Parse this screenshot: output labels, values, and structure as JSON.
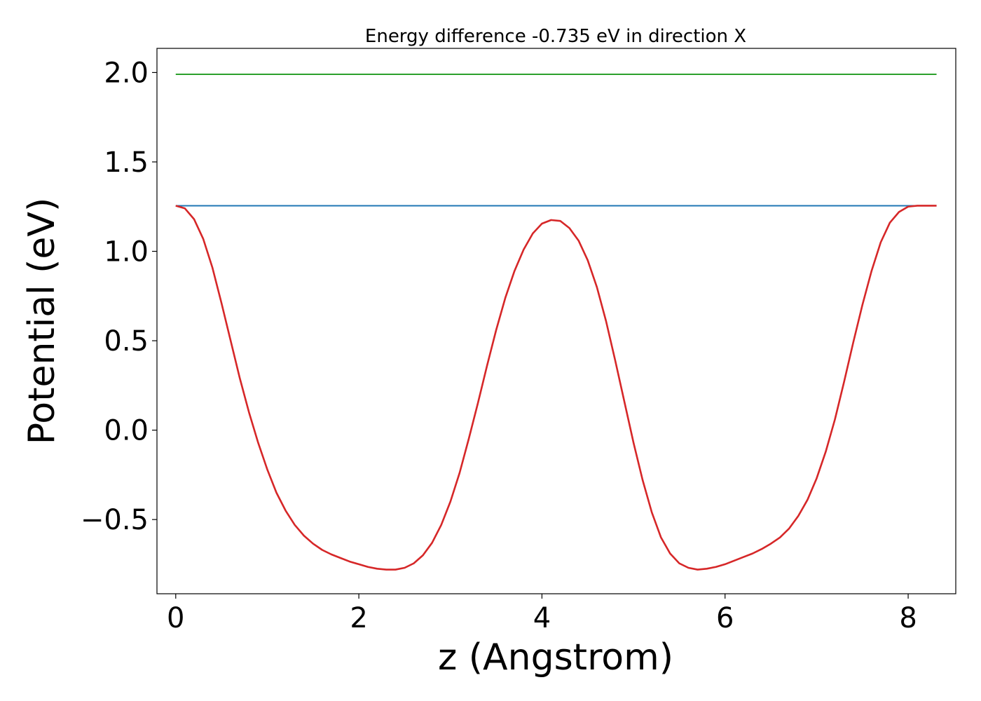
{
  "chart_data": {
    "type": "line",
    "title": "Energy difference -0.735 eV in direction X",
    "xlabel": "z (Angstrom)",
    "ylabel": "Potential (eV)",
    "xlim": [
      -0.205,
      8.52
    ],
    "ylim": [
      -0.915,
      2.135
    ],
    "xticks": [
      0,
      2,
      4,
      6,
      8
    ],
    "xtick_labels": [
      "0",
      "2",
      "4",
      "6",
      "8"
    ],
    "yticks": [
      -0.5,
      0.0,
      0.5,
      1.0,
      1.5,
      2.0
    ],
    "ytick_labels": [
      "−0.5",
      "0.0",
      "0.5",
      "1.0",
      "1.5",
      "2.0"
    ],
    "grid": false,
    "series": [
      {
        "color": "#2ca02c",
        "x": [
          0,
          8.31
        ],
        "y": [
          1.99,
          1.99
        ]
      },
      {
        "color": "#1f77b4",
        "x": [
          0,
          8.31
        ],
        "y": [
          1.255,
          1.255
        ]
      },
      {
        "color": "#d62728",
        "x": [
          0,
          0.1,
          0.2,
          0.3,
          0.4,
          0.5,
          0.6,
          0.7,
          0.8,
          0.9,
          1.0,
          1.1,
          1.2,
          1.3,
          1.4,
          1.5,
          1.6,
          1.7,
          1.8,
          1.9,
          2.0,
          2.1,
          2.2,
          2.3,
          2.4,
          2.5,
          2.6,
          2.7,
          2.8,
          2.9,
          3.0,
          3.1,
          3.2,
          3.3,
          3.4,
          3.5,
          3.6,
          3.7,
          3.8,
          3.9,
          4.0,
          4.1,
          4.2,
          4.3,
          4.4,
          4.5,
          4.6,
          4.7,
          4.8,
          4.9,
          5.0,
          5.1,
          5.2,
          5.3,
          5.4,
          5.5,
          5.6,
          5.7,
          5.8,
          5.9,
          6.0,
          6.1,
          6.2,
          6.3,
          6.4,
          6.5,
          6.6,
          6.7,
          6.8,
          6.9,
          7.0,
          7.1,
          7.2,
          7.3,
          7.4,
          7.5,
          7.6,
          7.7,
          7.8,
          7.9,
          8.0,
          8.1,
          8.2,
          8.31
        ],
        "y": [
          1.255,
          1.24,
          1.18,
          1.07,
          0.91,
          0.71,
          0.5,
          0.29,
          0.1,
          -0.07,
          -0.22,
          -0.35,
          -0.45,
          -0.53,
          -0.59,
          -0.635,
          -0.67,
          -0.695,
          -0.715,
          -0.735,
          -0.75,
          -0.765,
          -0.775,
          -0.78,
          -0.78,
          -0.77,
          -0.745,
          -0.7,
          -0.63,
          -0.53,
          -0.4,
          -0.24,
          -0.05,
          0.15,
          0.36,
          0.56,
          0.74,
          0.89,
          1.01,
          1.1,
          1.155,
          1.175,
          1.17,
          1.13,
          1.06,
          0.95,
          0.8,
          0.61,
          0.39,
          0.16,
          -0.07,
          -0.28,
          -0.46,
          -0.6,
          -0.69,
          -0.745,
          -0.77,
          -0.78,
          -0.775,
          -0.765,
          -0.75,
          -0.73,
          -0.71,
          -0.69,
          -0.665,
          -0.635,
          -0.6,
          -0.55,
          -0.48,
          -0.39,
          -0.27,
          -0.12,
          0.06,
          0.27,
          0.49,
          0.7,
          0.89,
          1.05,
          1.16,
          1.22,
          1.25,
          1.255,
          1.255,
          1.255
        ]
      }
    ]
  }
}
